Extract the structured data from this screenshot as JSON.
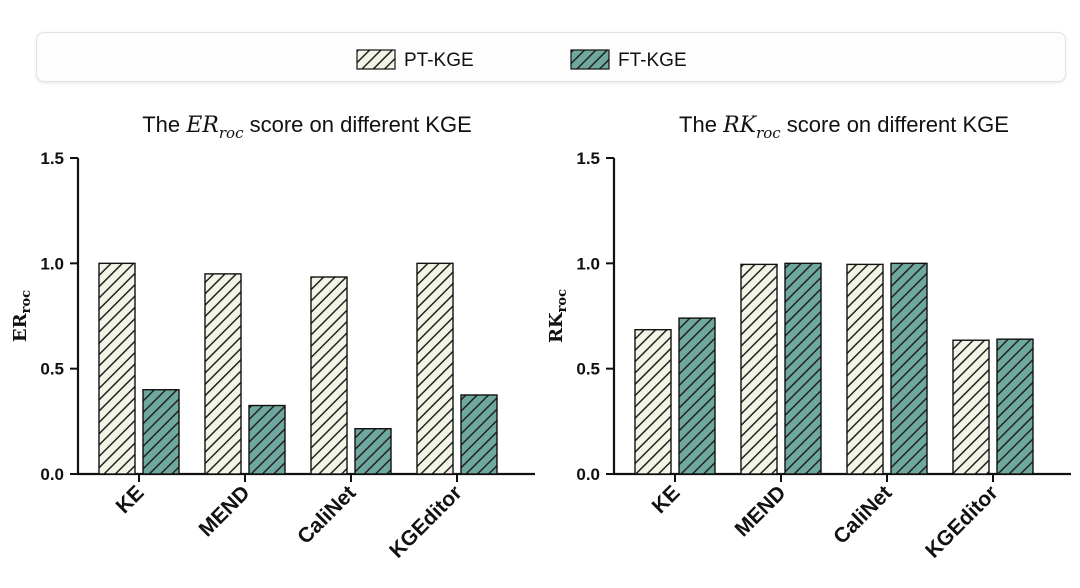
{
  "legend": {
    "items": [
      {
        "label": "PT-KGE",
        "pattern": "pt"
      },
      {
        "label": "FT-KGE",
        "pattern": "ft"
      }
    ]
  },
  "colors": {
    "pt_fill": "#f4f4e6",
    "ft_fill": "#6fa89e",
    "stroke": "#111111",
    "hatch": "#222222"
  },
  "chart_data": [
    {
      "type": "bar",
      "title_prefix": "The ",
      "title_math": "ER",
      "title_math_sub": "roc",
      "title_suffix": " score on different KGE",
      "ylabel_main": "ER",
      "ylabel_sub": "roc",
      "xlabel": "",
      "categories": [
        "KE",
        "MEND",
        "CaliNet",
        "KGEditor"
      ],
      "series": [
        {
          "name": "PT-KGE",
          "values": [
            1.0,
            0.95,
            0.935,
            1.0
          ]
        },
        {
          "name": "FT-KGE",
          "values": [
            0.4,
            0.325,
            0.215,
            0.375
          ]
        }
      ],
      "ylim": [
        0,
        1.5
      ],
      "yticks": [
        "0.0",
        "0.5",
        "1.0",
        "1.5"
      ],
      "ytick_values": [
        0,
        0.5,
        1.0,
        1.5
      ]
    },
    {
      "type": "bar",
      "title_prefix": "The ",
      "title_math": "RK",
      "title_math_sub": "roc",
      "title_suffix": " score on different KGE",
      "ylabel_main": "RK",
      "ylabel_sub": "roc",
      "xlabel": "",
      "categories": [
        "KE",
        "MEND",
        "CaliNet",
        "KGEditor"
      ],
      "series": [
        {
          "name": "PT-KGE",
          "values": [
            0.685,
            0.995,
            0.995,
            0.635
          ]
        },
        {
          "name": "FT-KGE",
          "values": [
            0.74,
            1.0,
            1.0,
            0.64
          ]
        }
      ],
      "ylim": [
        0,
        1.5
      ],
      "yticks": [
        "0.0",
        "0.5",
        "1.0",
        "1.5"
      ],
      "ytick_values": [
        0,
        0.5,
        1.0,
        1.5
      ]
    }
  ]
}
